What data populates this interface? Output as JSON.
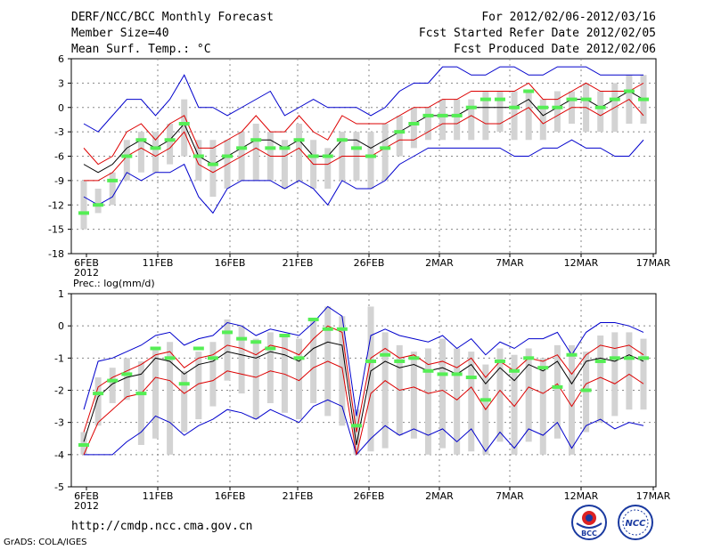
{
  "header": {
    "line1": "DERF/NCC/BCC Monthly Forecast",
    "line2": "Member Size=40",
    "line3": "Mean Surf. Temp.: °C",
    "right1": "For 2012/02/06-2012/03/16",
    "right2": "Fcst Started Refer Date 2012/02/05",
    "right3": "Fcst Produced Date 2012/02/06"
  },
  "footer": {
    "url": "http://cmdp.ncc.cma.gov.cn",
    "grads": "GrADS: COLA/IGES",
    "logo1_text": "BCC",
    "logo2_text": "NCC"
  },
  "colors": {
    "bar": "#d3d3d3",
    "median": "#55ee55",
    "envelope": "#0000cc",
    "quartile": "#dd0000",
    "mean": "#000000",
    "grid": "#888888"
  },
  "chart_data": [
    {
      "type": "box",
      "name": "temperature",
      "title": "Mean Surf. Temp.: °C",
      "xlabel_ticks": [
        "6FEB\n2012",
        "11FEB",
        "16FEB",
        "21FEB",
        "26FEB",
        "2MAR",
        "7MAR",
        "12MAR",
        "17MAR"
      ],
      "ylim": [
        -18,
        6
      ],
      "yticks": [
        -18,
        -15,
        -12,
        -9,
        -6,
        -3,
        0,
        3,
        6
      ],
      "days": 40,
      "max": [
        -2,
        -3,
        -1,
        1,
        1,
        -1,
        1,
        4,
        0,
        0,
        -1,
        0,
        1,
        2,
        -1,
        0,
        1,
        0,
        0,
        0,
        -1,
        0,
        2,
        3,
        3,
        5,
        5,
        4,
        4,
        5,
        5,
        4,
        4,
        5,
        5,
        5,
        4,
        4,
        4,
        4
      ],
      "q3": [
        -5,
        -7,
        -6,
        -3,
        -2,
        -4,
        -2,
        -1,
        -5,
        -5,
        -4,
        -3,
        -1,
        -3,
        -3,
        -1,
        -3,
        -4,
        -1,
        -2,
        -2,
        -2,
        -1,
        0,
        0,
        1,
        1,
        2,
        2,
        2,
        2,
        3,
        1,
        1,
        2,
        3,
        2,
        2,
        2,
        3
      ],
      "mean": [
        -7,
        -8,
        -7,
        -5,
        -4,
        -5,
        -4,
        -2,
        -6,
        -7,
        -6,
        -5,
        -4,
        -4,
        -5,
        -4,
        -6,
        -6,
        -4,
        -4,
        -5,
        -4,
        -3,
        -2,
        -1,
        -1,
        -1,
        0,
        0,
        0,
        0,
        1,
        -1,
        0,
        1,
        1,
        0,
        1,
        2,
        1
      ],
      "q1": [
        -9,
        -9,
        -8,
        -6,
        -5,
        -6,
        -5,
        -3,
        -7,
        -8,
        -7,
        -6,
        -5,
        -6,
        -6,
        -5,
        -7,
        -7,
        -6,
        -6,
        -6,
        -5,
        -4,
        -4,
        -3,
        -2,
        -2,
        -1,
        -2,
        -2,
        -1,
        0,
        -2,
        -1,
        0,
        0,
        -1,
        0,
        1,
        -1
      ],
      "min": [
        -11,
        -12,
        -11,
        -8,
        -9,
        -8,
        -8,
        -7,
        -11,
        -13,
        -10,
        -9,
        -9,
        -9,
        -10,
        -9,
        -10,
        -12,
        -9,
        -10,
        -10,
        -9,
        -7,
        -6,
        -5,
        -5,
        -5,
        -5,
        -5,
        -5,
        -6,
        -6,
        -5,
        -5,
        -4,
        -5,
        -5,
        -6,
        -6,
        -4
      ],
      "median": [
        -13,
        -12,
        -9,
        -6,
        -4,
        -5,
        -4,
        -2,
        -6,
        -7,
        -6,
        -5,
        -4,
        -5,
        -5,
        -4,
        -6,
        -6,
        -4,
        -5,
        -6,
        -5,
        -3,
        -2,
        -1,
        -1,
        -1,
        0,
        1,
        1,
        0,
        2,
        0,
        0,
        1,
        1,
        0,
        1,
        2,
        1
      ],
      "bar_top": [
        -9,
        -10,
        -8,
        -4,
        -3,
        -3,
        -2,
        1,
        -4,
        -4,
        -4,
        -3,
        -2,
        -3,
        -4,
        -2,
        -4,
        -5,
        -3,
        -3,
        -3,
        -2,
        -1,
        0,
        0,
        1,
        1,
        1,
        2,
        2,
        2,
        2,
        1,
        2,
        2,
        3,
        2,
        3,
        4,
        4
      ],
      "bar_bot": [
        -15,
        -13,
        -12,
        -9,
        -8,
        -8,
        -7,
        -6,
        -9,
        -11,
        -10,
        -9,
        -9,
        -9,
        -10,
        -9,
        -10,
        -10,
        -9,
        -9,
        -10,
        -9,
        -6,
        -5,
        -4,
        -4,
        -4,
        -4,
        -4,
        -3,
        -4,
        -4,
        -4,
        -3,
        -2,
        -3,
        -3,
        -3,
        -2,
        -2
      ]
    },
    {
      "type": "box",
      "name": "precipitation",
      "title": "Prec.: log(mm/d)",
      "xlabel_ticks": [
        "6FEB\n2012",
        "11FEB",
        "16FEB",
        "21FEB",
        "26FEB",
        "2MAR",
        "7MAR",
        "12MAR",
        "17MAR"
      ],
      "ylim": [
        -5,
        1
      ],
      "yticks": [
        -5,
        -4,
        -3,
        -2,
        -1,
        0,
        1
      ],
      "days": 40,
      "max": [
        -2.6,
        -1.1,
        -1.0,
        -0.8,
        -0.6,
        -0.3,
        -0.2,
        -0.6,
        -0.4,
        -0.3,
        0.1,
        0.0,
        -0.3,
        -0.1,
        -0.2,
        -0.3,
        0.1,
        0.6,
        0.3,
        -2.8,
        -0.3,
        -0.1,
        -0.3,
        -0.4,
        -0.5,
        -0.3,
        -0.7,
        -0.4,
        -0.9,
        -0.5,
        -0.7,
        -0.4,
        -0.4,
        -0.2,
        -0.9,
        -0.2,
        0.1,
        0.1,
        0.0,
        -0.2
      ],
      "q3": [
        -3.3,
        -1.9,
        -1.6,
        -1.4,
        -1.2,
        -0.9,
        -0.8,
        -1.3,
        -1.0,
        -0.9,
        -0.6,
        -0.7,
        -0.9,
        -0.6,
        -0.7,
        -0.9,
        -0.4,
        0.0,
        -0.2,
        -3.3,
        -1.0,
        -0.7,
        -1.0,
        -0.9,
        -1.2,
        -1.1,
        -1.3,
        -1.0,
        -1.6,
        -1.1,
        -1.4,
        -1.0,
        -1.1,
        -0.9,
        -1.5,
        -0.9,
        -0.6,
        -0.7,
        -0.6,
        -0.9
      ],
      "mean": [
        -3.6,
        -2.2,
        -1.8,
        -1.6,
        -1.5,
        -1.0,
        -1.1,
        -1.5,
        -1.2,
        -1.1,
        -0.8,
        -0.9,
        -1.0,
        -0.8,
        -0.9,
        -1.1,
        -0.7,
        -0.5,
        -0.6,
        -3.7,
        -1.4,
        -1.1,
        -1.3,
        -1.2,
        -1.4,
        -1.3,
        -1.5,
        -1.2,
        -1.8,
        -1.3,
        -1.7,
        -1.2,
        -1.4,
        -1.1,
        -1.8,
        -1.1,
        -1.0,
        -1.1,
        -0.9,
        -1.1
      ],
      "q1": [
        -4.0,
        -3.0,
        -2.6,
        -2.2,
        -2.1,
        -1.6,
        -1.7,
        -2.1,
        -1.8,
        -1.7,
        -1.4,
        -1.5,
        -1.6,
        -1.4,
        -1.5,
        -1.7,
        -1.3,
        -1.1,
        -1.3,
        -4.0,
        -2.1,
        -1.7,
        -2.0,
        -1.9,
        -2.1,
        -2.0,
        -2.3,
        -1.9,
        -2.6,
        -2.0,
        -2.5,
        -1.9,
        -2.1,
        -1.8,
        -2.5,
        -1.8,
        -1.6,
        -1.8,
        -1.5,
        -1.8
      ],
      "min": [
        -4.0,
        -4.0,
        -4.0,
        -3.6,
        -3.3,
        -2.8,
        -3.0,
        -3.4,
        -3.1,
        -2.9,
        -2.6,
        -2.7,
        -2.9,
        -2.6,
        -2.8,
        -3.0,
        -2.5,
        -2.3,
        -2.5,
        -4.0,
        -3.5,
        -3.1,
        -3.4,
        -3.2,
        -3.4,
        -3.2,
        -3.6,
        -3.2,
        -3.9,
        -3.3,
        -3.8,
        -3.2,
        -3.4,
        -3.0,
        -3.8,
        -3.1,
        -2.9,
        -3.2,
        -3.0,
        -3.1
      ],
      "median": [
        -3.7,
        -2.1,
        -1.7,
        -1.5,
        -2.1,
        -0.7,
        -1.0,
        -1.8,
        -0.7,
        -1.0,
        -0.2,
        -0.4,
        -0.5,
        -0.7,
        -0.3,
        -1.0,
        0.2,
        -0.1,
        -0.1,
        -3.1,
        -1.1,
        -0.9,
        -1.1,
        -1.0,
        -1.4,
        -1.5,
        -1.5,
        -1.6,
        -2.3,
        -1.1,
        -1.4,
        -1.0,
        -1.3,
        -1.9,
        -0.9,
        -2.0,
        -1.1,
        -1.0,
        -1.0,
        -1.0
      ],
      "bar_top": [
        -3.3,
        -1.6,
        -1.3,
        -1.0,
        -1.1,
        -0.7,
        -0.5,
        -1.4,
        -0.8,
        -0.5,
        0.2,
        0.0,
        -0.4,
        -0.2,
        -0.3,
        -0.4,
        0.2,
        0.6,
        0.3,
        -2.6,
        0.6,
        -0.2,
        -0.6,
        -0.8,
        -0.7,
        -0.4,
        -0.7,
        -0.8,
        -1.2,
        -0.7,
        -0.9,
        -0.7,
        -1.0,
        -0.6,
        -0.6,
        -0.8,
        -0.3,
        -0.2,
        -0.2,
        -0.4
      ],
      "bar_bot": [
        -4.0,
        -3.1,
        -2.4,
        -2.3,
        -3.7,
        -3.5,
        -4.0,
        -3.3,
        -2.9,
        -2.5,
        -1.7,
        -2.1,
        -2.9,
        -2.4,
        -2.7,
        -2.9,
        -2.4,
        -2.8,
        -3.1,
        -4.0,
        -3.9,
        -3.8,
        -3.4,
        -3.5,
        -4.0,
        -3.8,
        -4.0,
        -3.9,
        -4.0,
        -3.6,
        -4.0,
        -3.6,
        -4.0,
        -3.5,
        -4.0,
        -3.3,
        -3.0,
        -2.8,
        -2.6,
        -2.6
      ]
    }
  ]
}
